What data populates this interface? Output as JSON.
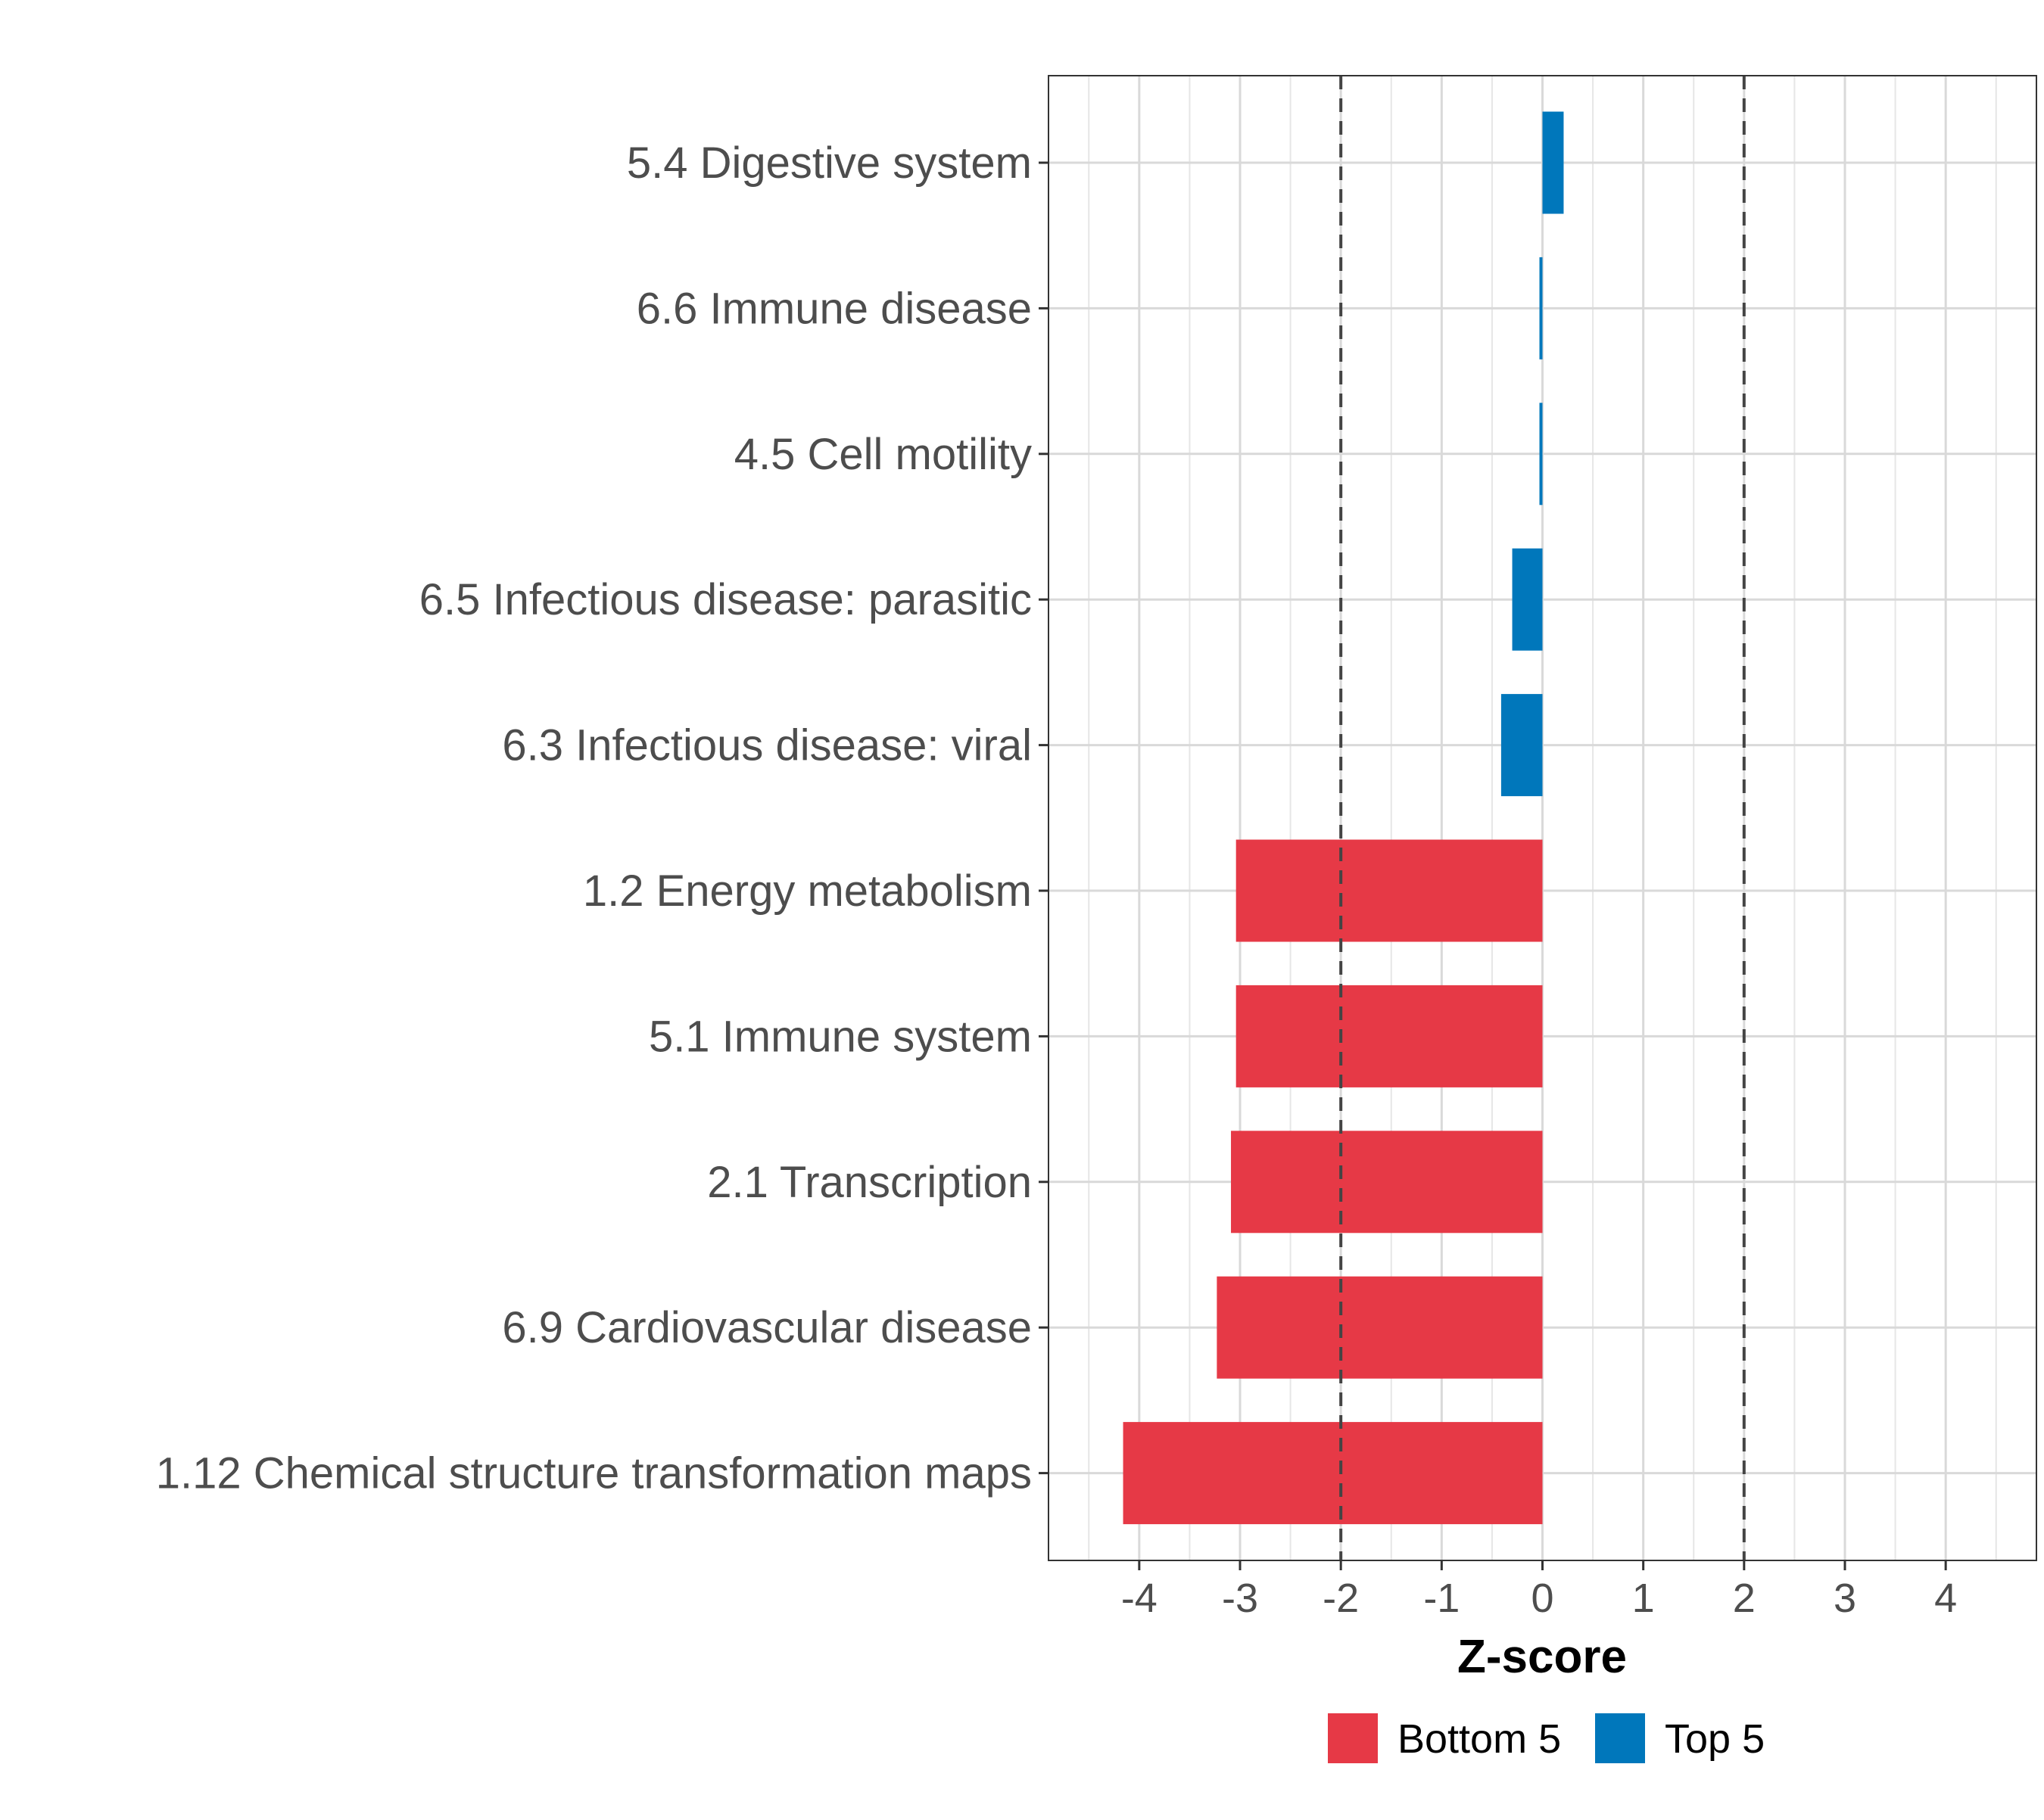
{
  "chart_data": {
    "type": "bar",
    "orientation": "horizontal",
    "title": "",
    "xlabel": "Z-score",
    "ylabel": "",
    "xlim": [
      -4.9,
      4.9
    ],
    "x_ticks": [
      -4,
      -3,
      -2,
      -1,
      0,
      1,
      2,
      3,
      4
    ],
    "x_tick_labels": [
      "-4",
      "-3",
      "-2",
      "-1",
      "0",
      "1",
      "2",
      "3",
      "4"
    ],
    "grid": true,
    "reference_lines": [
      {
        "x": -2,
        "style": "dashed"
      },
      {
        "x": 2,
        "style": "dashed"
      }
    ],
    "categories": [
      "5.4 Digestive system",
      "6.6 Immune disease",
      "4.5 Cell motility",
      "6.5 Infectious disease: parasitic",
      "6.3 Infectious disease: viral",
      "1.2 Energy metabolism",
      "5.1 Immune system",
      "2.1 Transcription",
      "6.9 Cardiovascular disease",
      "1.12 Chemical structure transformation maps"
    ],
    "values": [
      0.21,
      -0.03,
      -0.03,
      -0.3,
      -0.41,
      -3.04,
      -3.04,
      -3.09,
      -3.23,
      -4.16
    ],
    "groups": [
      "Top 5",
      "Top 5",
      "Top 5",
      "Top 5",
      "Top 5",
      "Bottom 5",
      "Bottom 5",
      "Bottom 5",
      "Bottom 5",
      "Bottom 5"
    ],
    "legend": {
      "position": "bottom",
      "entries": [
        {
          "label": "Bottom 5",
          "color": "#e63946"
        },
        {
          "label": "Top 5",
          "color": "#0077bb"
        }
      ]
    }
  }
}
